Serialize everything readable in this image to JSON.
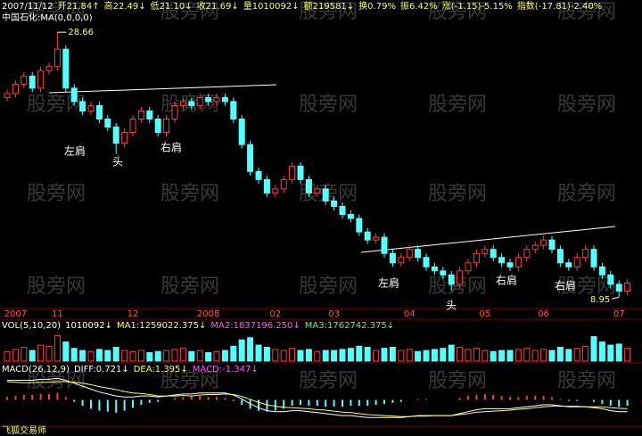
{
  "chart_data": [
    {
      "type": "candlestick",
      "title": "中国石化:MA(0,0,0,0)",
      "info": [
        {
          "text": "2007/11/12",
          "color": "#ffffff"
        },
        {
          "text": "开21.84↑",
          "color": "#ffff55"
        },
        {
          "text": "高22.49↓",
          "color": "#ffff55"
        },
        {
          "text": "低21.10↓",
          "color": "#ffff55"
        },
        {
          "text": "收21.69↓",
          "color": "#ffff55"
        },
        {
          "text": "量1010092↓",
          "color": "#ffff55"
        },
        {
          "text": "额219581↓",
          "color": "#ffff55"
        },
        {
          "text": "换0.79%",
          "color": "#ffff55"
        },
        {
          "text": "振6.42%",
          "color": "#ffff55"
        },
        {
          "text": "涨(-1.15)-5.15%",
          "color": "#ffff55"
        },
        {
          "text": "指数(-17.81)-2.40%",
          "color": "#ffff55"
        }
      ],
      "categories": [
        null,
        "2007",
        null,
        null,
        null,
        null,
        "11",
        null,
        null,
        null,
        null,
        null,
        null,
        null,
        null,
        "12",
        null,
        null,
        null,
        null,
        null,
        null,
        null,
        null,
        "2008",
        null,
        null,
        null,
        null,
        null,
        null,
        null,
        "02",
        null,
        null,
        null,
        null,
        null,
        null,
        "03",
        null,
        null,
        null,
        null,
        null,
        null,
        null,
        null,
        "04",
        null,
        null,
        null,
        null,
        null,
        null,
        null,
        null,
        "05",
        null,
        null,
        null,
        null,
        null,
        null,
        "06",
        null,
        null,
        null,
        null,
        null,
        null,
        null,
        null,
        "07",
        null
      ],
      "open": [
        23.8,
        24.1,
        24.8,
        25.4,
        24.5,
        25.8,
        26.1,
        27.4,
        24.5,
        23.5,
        22.8,
        23.2,
        22.2,
        21.6,
        20.4,
        21.2,
        22.2,
        22.8,
        22.2,
        21.2,
        22.2,
        23.2,
        23.5,
        23.2,
        23.8,
        23.5,
        23.8,
        23.5,
        22.2,
        20.3,
        18.3,
        17.7,
        16.7,
        17.0,
        17.7,
        18.7,
        17.7,
        16.7,
        17.0,
        16.1,
        15.7,
        15.1,
        14.8,
        13.8,
        13.2,
        13.4,
        12.2,
        11.5,
        11.9,
        12.5,
        11.9,
        11.2,
        10.9,
        10.6,
        9.9,
        10.9,
        11.5,
        12.2,
        12.5,
        11.9,
        11.5,
        11.2,
        11.9,
        12.5,
        12.8,
        13.2,
        12.5,
        11.5,
        11.2,
        11.9,
        12.5,
        11.2,
        10.6,
        9.9,
        9.4
      ],
      "high": [
        24.4,
        25.1,
        25.7,
        25.7,
        26.1,
        26.4,
        28.66,
        27.7,
        24.8,
        23.8,
        23.5,
        23.5,
        22.5,
        21.9,
        21.5,
        22.5,
        23.1,
        23.1,
        22.5,
        22.5,
        23.5,
        23.8,
        23.8,
        24.1,
        24.1,
        24.1,
        24.1,
        23.8,
        22.5,
        20.6,
        18.6,
        18.0,
        17.3,
        18.0,
        19.0,
        19.0,
        18.0,
        17.3,
        17.3,
        16.4,
        16.0,
        15.4,
        15.1,
        14.1,
        13.7,
        13.7,
        12.5,
        12.2,
        12.8,
        12.8,
        12.2,
        11.5,
        11.2,
        10.9,
        11.2,
        11.8,
        12.5,
        12.8,
        12.8,
        12.2,
        11.8,
        12.2,
        12.8,
        13.1,
        13.5,
        13.5,
        12.8,
        11.8,
        12.2,
        12.8,
        12.8,
        11.5,
        10.9,
        10.2,
        10.3
      ],
      "low": [
        23.5,
        23.8,
        24.5,
        24.2,
        24.2,
        25.5,
        25.8,
        24.2,
        23.2,
        22.5,
        22.5,
        21.9,
        21.3,
        19.6,
        20.1,
        20.9,
        21.9,
        21.9,
        20.9,
        20.9,
        21.9,
        22.9,
        22.9,
        22.9,
        23.2,
        23.2,
        23.2,
        21.9,
        20.0,
        18.0,
        17.4,
        16.4,
        16.4,
        16.7,
        17.4,
        17.4,
        16.4,
        16.4,
        15.8,
        15.4,
        14.8,
        14.5,
        13.5,
        12.9,
        12.9,
        11.9,
        11.2,
        11.2,
        11.6,
        11.6,
        10.9,
        10.6,
        10.3,
        9.4,
        9.6,
        10.6,
        11.2,
        11.9,
        11.6,
        11.2,
        10.9,
        10.9,
        11.6,
        12.2,
        12.5,
        12.2,
        11.2,
        10.9,
        10.9,
        11.6,
        10.9,
        10.3,
        9.6,
        8.95,
        9.1
      ],
      "close": [
        24.1,
        24.8,
        25.4,
        24.5,
        25.8,
        26.1,
        27.4,
        24.5,
        23.5,
        22.8,
        23.2,
        22.2,
        21.6,
        20.4,
        21.2,
        22.2,
        22.8,
        22.2,
        21.2,
        22.2,
        23.2,
        23.5,
        23.2,
        23.8,
        23.5,
        23.8,
        23.5,
        22.2,
        20.3,
        18.3,
        17.7,
        16.7,
        17.0,
        17.7,
        18.7,
        17.7,
        16.7,
        17.0,
        16.1,
        15.7,
        15.1,
        14.8,
        13.8,
        13.2,
        13.4,
        12.2,
        11.5,
        11.9,
        12.5,
        11.9,
        11.2,
        10.9,
        10.6,
        9.9,
        10.9,
        11.5,
        12.2,
        12.5,
        11.9,
        11.5,
        11.2,
        11.9,
        12.5,
        12.8,
        13.2,
        12.5,
        11.5,
        11.2,
        11.9,
        12.5,
        11.2,
        10.6,
        9.9,
        9.4,
        10.0
      ],
      "up_color": "#ff3c3c",
      "down_color": "#54ffff",
      "ylim": [
        8.3,
        29.2
      ],
      "annotations": [
        "左肩",
        "头",
        "右肩",
        "左肩",
        "头",
        "右肩",
        "右肩"
      ],
      "watermark": "股旁网",
      "footer": "飞狐交易师"
    },
    {
      "type": "bar",
      "header": [
        {
          "text": "VOL(5,10,20)",
          "color": "#ffffff"
        },
        {
          "text": "1010092↓",
          "color": "#ffffff"
        },
        {
          "text": "MA1:1259022.375↓",
          "color": "#ffff55"
        },
        {
          "text": "MA2:1837196.250↓",
          "color": "#ff55ff"
        },
        {
          "text": "MA3:1762742.375↓",
          "color": "#55ff55"
        }
      ],
      "values": [
        900000,
        1100000,
        1300000,
        1000000,
        1500000,
        1400000,
        2400000,
        1800000,
        1200000,
        1000000,
        900000,
        1100000,
        1000000,
        1300000,
        1000000,
        900000,
        1000000,
        800000,
        900000,
        1000000,
        1100000,
        1200000,
        900000,
        1000000,
        800000,
        900000,
        1000000,
        1400000,
        2000000,
        2200000,
        1500000,
        1300000,
        1100000,
        1000000,
        1200000,
        1000000,
        1100000,
        900000,
        1000000,
        1000000,
        1100000,
        1200000,
        1400000,
        1300000,
        1000000,
        1200000,
        1300000,
        1000000,
        1100000,
        900000,
        1000000,
        1100000,
        1200000,
        1500000,
        1300000,
        1100000,
        1200000,
        1000000,
        900000,
        1000000,
        1000000,
        1100000,
        1200000,
        1000000,
        1100000,
        1000000,
        1300000,
        1100000,
        1200000,
        1400000,
        2300000,
        1800000,
        1500000,
        1600000,
        1200000
      ],
      "up_color": "#ff3c3c",
      "down_color": "#54ffff",
      "ylim": [
        0,
        2600000
      ]
    },
    {
      "type": "bar",
      "header": [
        {
          "text": "MACD(26,12,9)",
          "color": "#ffffff"
        },
        {
          "text": "DIFF:0.721↓",
          "color": "#ffffff"
        },
        {
          "text": "DEA:1.395↓",
          "color": "#ffff55"
        },
        {
          "text": "MACD:-1.347↓",
          "color": "#ff55ff"
        }
      ],
      "values": [
        0.3,
        0.4,
        0.5,
        0.5,
        0.6,
        0.6,
        0.7,
        0.3,
        -0.2,
        -0.6,
        -0.9,
        -1.1,
        -1.2,
        -1.3,
        -1.1,
        -0.8,
        -0.5,
        -0.3,
        -0.2,
        0.0,
        0.2,
        0.3,
        0.4,
        0.4,
        0.3,
        0.3,
        0.2,
        -0.1,
        -0.5,
        -0.9,
        -1.1,
        -1.2,
        -1.1,
        -0.9,
        -0.6,
        -0.5,
        -0.6,
        -0.6,
        -0.7,
        -0.7,
        -0.7,
        -0.6,
        -0.6,
        -0.6,
        -0.5,
        -0.4,
        -0.3,
        -0.2,
        0.0,
        0.1,
        0.1,
        0.0,
        0.0,
        0.0,
        0.2,
        0.4,
        0.5,
        0.6,
        0.5,
        0.4,
        0.3,
        0.3,
        0.4,
        0.4,
        0.4,
        0.3,
        0.1,
        -0.1,
        -0.1,
        0.0,
        -0.2,
        -0.4,
        -0.6,
        -0.7,
        -0.6
      ],
      "up_color": "#ff3c3c",
      "down_color": "#54ffff",
      "series": [
        {
          "color": "#ffffff",
          "values": [
            2.0,
            2.0,
            2.0,
            2.0,
            2.1,
            2.1,
            2.2,
            2.0,
            1.7,
            1.4,
            1.1,
            0.8,
            0.6,
            0.4,
            0.3,
            0.3,
            0.4,
            0.4,
            0.3,
            0.4,
            0.5,
            0.6,
            0.6,
            0.7,
            0.7,
            0.7,
            0.7,
            0.5,
            0.1,
            -0.4,
            -0.8,
            -1.1,
            -1.2,
            -1.2,
            -1.1,
            -1.1,
            -1.2,
            -1.3,
            -1.4,
            -1.5,
            -1.6,
            -1.6,
            -1.7,
            -1.8,
            -1.8,
            -1.8,
            -1.8,
            -1.8,
            -1.7,
            -1.6,
            -1.6,
            -1.6,
            -1.6,
            -1.6,
            -1.4,
            -1.2,
            -1.0,
            -0.9,
            -0.9,
            -0.9,
            -0.9,
            -0.8,
            -0.7,
            -0.6,
            -0.5,
            -0.5,
            -0.6,
            -0.7,
            -0.7,
            -0.7,
            -0.8,
            -0.9,
            -1.1,
            -1.2,
            -1.2
          ]
        },
        {
          "color": "#ffff55",
          "values": [
            1.85,
            1.8,
            1.75,
            1.75,
            1.8,
            1.8,
            1.85,
            1.85,
            1.8,
            1.7,
            1.55,
            1.35,
            1.2,
            1.05,
            0.85,
            0.7,
            0.65,
            0.55,
            0.4,
            0.4,
            0.4,
            0.45,
            0.4,
            0.5,
            0.55,
            0.55,
            0.6,
            0.55,
            0.35,
            0.05,
            -0.25,
            -0.5,
            -0.65,
            -0.75,
            -0.8,
            -0.85,
            -0.9,
            -1.0,
            -1.05,
            -1.15,
            -1.25,
            -1.3,
            -1.4,
            -1.5,
            -1.55,
            -1.6,
            -1.65,
            -1.7,
            -1.7,
            -1.65,
            -1.65,
            -1.6,
            -1.6,
            -1.6,
            -1.5,
            -1.4,
            -1.25,
            -1.2,
            -1.15,
            -1.1,
            -1.05,
            -0.95,
            -0.9,
            -0.8,
            -0.7,
            -0.65,
            -0.65,
            -0.65,
            -0.65,
            -0.7,
            -0.7,
            -0.7,
            -0.8,
            -0.85,
            -0.9
          ]
        }
      ],
      "ylim": [
        -2.5,
        2.5
      ]
    }
  ]
}
